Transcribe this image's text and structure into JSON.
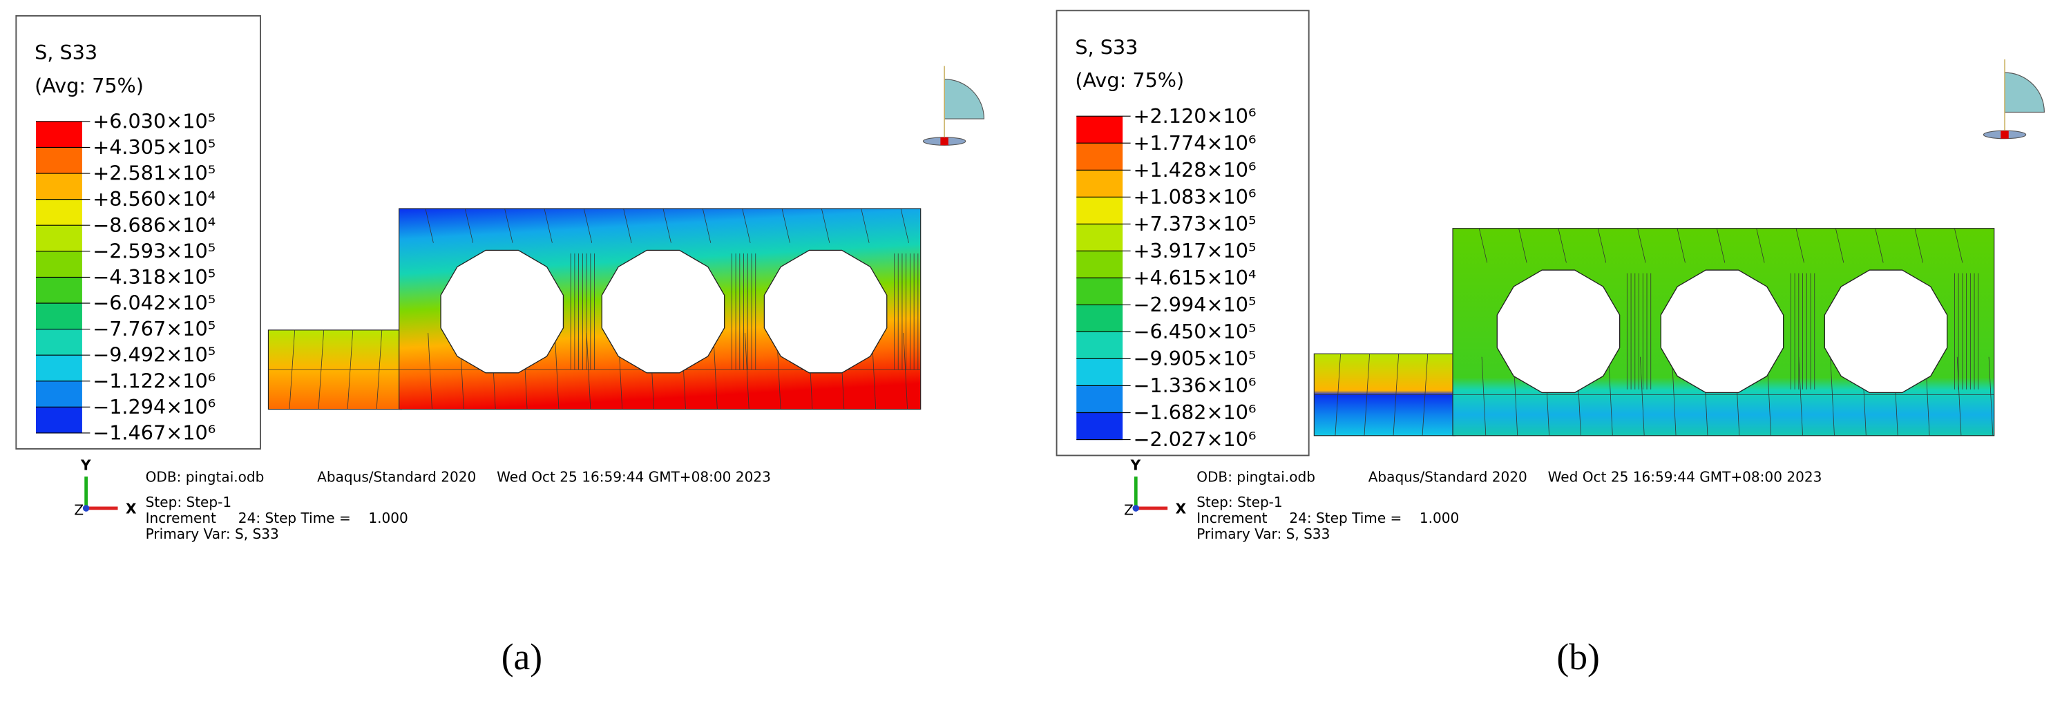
{
  "panels": [
    {
      "legend": {
        "title": "S, S33",
        "subtitle": "(Avg: 75%)",
        "labels": [
          "+6.030×10⁵",
          "+4.305×10⁵",
          "+2.581×10⁵",
          "+8.560×10⁴",
          "−8.686×10⁴",
          "−2.593×10⁵",
          "−4.318×10⁵",
          "−6.042×10⁵",
          "−7.767×10⁵",
          "−9.492×10⁵",
          "−1.122×10⁶",
          "−1.294×10⁶",
          "−1.467×10⁶"
        ],
        "colors": [
          "#ff0000",
          "#ff6a00",
          "#ffb300",
          "#eeea00",
          "#b8e600",
          "#7fd700",
          "#3fcd1f",
          "#10c86b",
          "#15d4b3",
          "#12c9e6",
          "#0d85ee",
          "#0a2ff0"
        ]
      },
      "info": {
        "odb": "ODB: pingtai.odb",
        "solver": "Abaqus/Standard 2020",
        "date": "Wed Oct 25 16:59:44 GMT+08:00 2023",
        "step": "Step: Step-1",
        "increment": "Increment     24: Step Time =    1.000",
        "primary_var": "Primary Var: S, S33"
      },
      "triad": {
        "y": "Y",
        "x": "X",
        "z": "Z"
      },
      "caption": "(a)"
    },
    {
      "legend": {
        "title": "S, S33",
        "subtitle": "(Avg: 75%)",
        "labels": [
          "+2.120×10⁶",
          "+1.774×10⁶",
          "+1.428×10⁶",
          "+1.083×10⁶",
          "+7.373×10⁵",
          "+3.917×10⁵",
          "+4.615×10⁴",
          "−2.994×10⁵",
          "−6.450×10⁵",
          "−9.905×10⁵",
          "−1.336×10⁶",
          "−1.682×10⁶",
          "−2.027×10⁶"
        ],
        "colors": [
          "#ff0000",
          "#ff6a00",
          "#ffb300",
          "#eeea00",
          "#b8e600",
          "#7fd700",
          "#3fcd1f",
          "#10c86b",
          "#15d4b3",
          "#12c9e6",
          "#0d85ee",
          "#0a2ff0"
        ]
      },
      "info": {
        "odb": "ODB: pingtai.odb",
        "solver": "Abaqus/Standard 2020",
        "date": "Wed Oct 25 16:59:44 GMT+08:00 2023",
        "step": "Step: Step-1",
        "increment": "Increment     24: Step Time =    1.000",
        "primary_var": "Primary Var: S, S33"
      },
      "triad": {
        "y": "Y",
        "x": "X",
        "z": "Z"
      },
      "caption": "(b)"
    }
  ]
}
